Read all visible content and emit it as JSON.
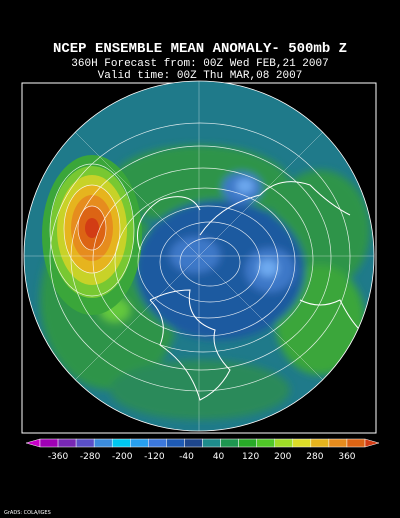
{
  "header": {
    "title": "NCEP ENSEMBLE MEAN ANOMALY- 500mb Z",
    "forecast": "360H Forecast from: 00Z Wed FEB,21 2007",
    "valid": "Valid time: 00Z Thu MAR,08 2007"
  },
  "colorbar": {
    "labels": [
      -360,
      -280,
      -200,
      -120,
      -40,
      40,
      120,
      200,
      280,
      360
    ]
  },
  "credit": "GrADS: COLA/IGES"
}
